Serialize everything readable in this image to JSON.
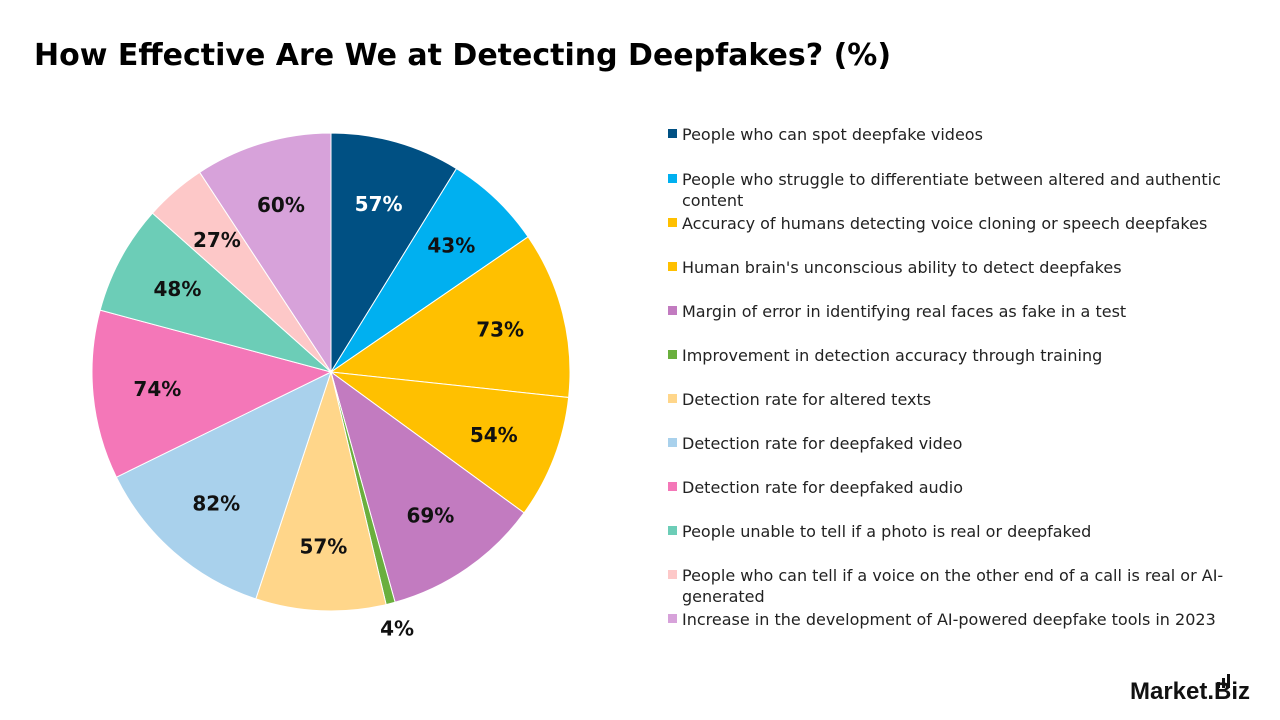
{
  "chart_data": {
    "type": "pie",
    "title": "How Effective Are We at Detecting Deepfakes? (%)",
    "legend_position": "right",
    "slices": [
      {
        "label": "People who can spot deepfake videos",
        "value": 57,
        "display": "57%",
        "color": "#005083"
      },
      {
        "label": "People who struggle to differentiate between altered and authentic content",
        "value": 43,
        "display": "43%",
        "color": "#00B0F0"
      },
      {
        "label": "Accuracy of humans detecting voice cloning or speech deepfakes",
        "value": 73,
        "display": "73%",
        "color": "#FFC000"
      },
      {
        "label": "Human brain's unconscious ability to detect deepfakes",
        "value": 54,
        "display": "54%",
        "color": "#FFC000"
      },
      {
        "label": "Margin of error in identifying real faces as fake in a test",
        "value": 69,
        "display": "69%",
        "color": "#C27BC0"
      },
      {
        "label": "Improvement in detection accuracy through training",
        "value": 4,
        "display": "4%",
        "color": "#6AAF3D"
      },
      {
        "label": "Detection rate for altered texts",
        "value": 57,
        "display": "57%",
        "color": "#FFD68A"
      },
      {
        "label": "Detection rate for deepfaked video",
        "value": 82,
        "display": "82%",
        "color": "#A9D1EC"
      },
      {
        "label": "Detection rate for deepfaked audio",
        "value": 74,
        "display": "74%",
        "color": "#F477B8"
      },
      {
        "label": "People unable to tell if a photo is real or deepfaked",
        "value": 48,
        "display": "48%",
        "color": "#6CCDB7"
      },
      {
        "label": "People who can tell if a voice on the other end of a call is real or AI-generated",
        "value": 27,
        "display": "27%",
        "color": "#FDC8C8"
      },
      {
        "label": "Increase in the development of AI-powered deepfake tools in 2023",
        "value": 60,
        "display": "60%",
        "color": "#D7A2DA"
      }
    ]
  },
  "brand": {
    "name": "Market",
    "suffix": ".Biz"
  }
}
